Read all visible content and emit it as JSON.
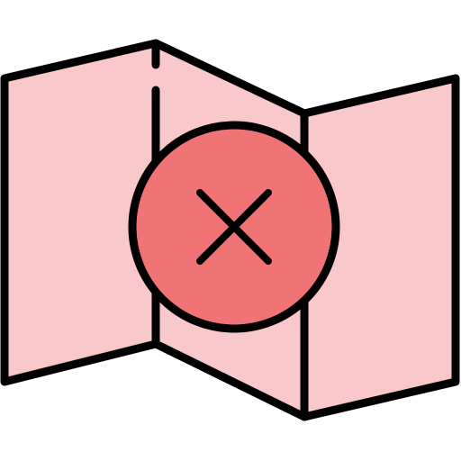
{
  "icon": {
    "name": "map-error-icon",
    "colors": {
      "map_fill": "#F8C8CA",
      "badge_fill": "#F07376",
      "stroke": "#000000",
      "background": "#FFFFFF"
    },
    "parts": {
      "map": "folded-map-icon",
      "badge": "close-circle-icon",
      "mark": "x-mark-icon"
    }
  }
}
